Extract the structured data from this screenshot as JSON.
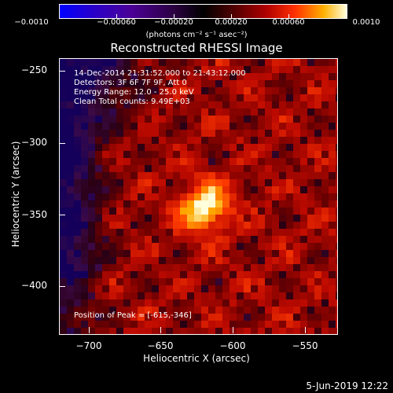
{
  "colorbar": {
    "ticks": [
      "−0.0010",
      "−0.00060",
      "−0.00020",
      "0.00020",
      "0.00060",
      "0.0010"
    ],
    "units": "(photons cm⁻² s⁻¹ asec⁻²)",
    "colors": [
      "#0000ff",
      "#4b0096",
      "#000000",
      "#b00000",
      "#ff3000",
      "#ffffe0"
    ]
  },
  "title": "Reconstructed RHESSI Image",
  "info": {
    "time_range": "14-Dec-2014 21:31:52.000 to 21:43:12.000",
    "detectors": "Detectors: 3F 6F 7F 9F, Att 0",
    "energy_range": "Energy Range: 12.0 - 25.0 keV",
    "clean_counts": "Clean    Total counts: 9.49E+03",
    "peak": "Position of Peak = [-615,-346]"
  },
  "axes": {
    "xlabel": "Heliocentric X (arcsec)",
    "ylabel": "Heliocentric Y (arcsec)",
    "xticks": [
      "−700",
      "−650",
      "−600",
      "−550"
    ],
    "yticks": [
      "−250",
      "−300",
      "−350",
      "−400"
    ],
    "xlim": [
      -720,
      -528
    ],
    "ylim": [
      -432,
      -240
    ]
  },
  "footer": {
    "date": "5-Jun-2019 12:22"
  }
}
